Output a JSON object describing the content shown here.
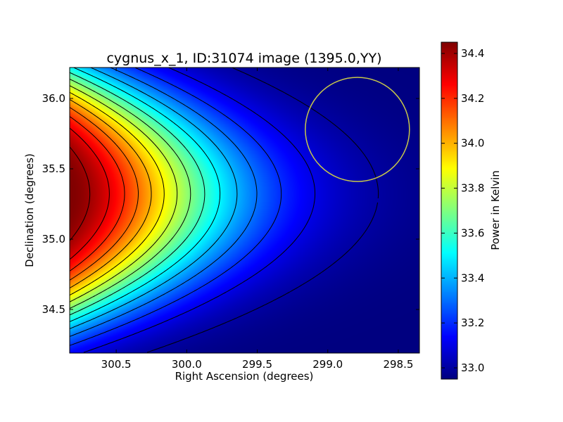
{
  "chart_data": {
    "type": "heatmap",
    "title": "cygnus_x_1, ID:31074 image (1395.0,YY)",
    "xlabel": "Right Ascension (degrees)",
    "ylabel": "Declination (degrees)",
    "colorbar_label": "Power in Kelvin",
    "colormap": "jet",
    "x_direction": "reversed",
    "xlim": [
      300.83,
      298.35
    ],
    "ylim": [
      34.19,
      36.22
    ],
    "x_ticks": [
      300.5,
      300.0,
      299.5,
      299.0,
      298.5
    ],
    "x_tick_labels": [
      "300.5",
      "300.0",
      "299.5",
      "299.0",
      "298.5"
    ],
    "y_ticks": [
      34.5,
      35.0,
      35.5,
      36.0
    ],
    "y_tick_labels": [
      "34.5",
      "35.0",
      "35.5",
      "36.0"
    ],
    "colorbar_range": [
      32.95,
      34.45
    ],
    "colorbar_ticks": [
      33.0,
      33.2,
      33.4,
      33.6,
      33.8,
      34.0,
      34.2,
      34.4
    ],
    "colorbar_tick_labels": [
      "33.0",
      "33.2",
      "33.4",
      "33.6",
      "33.8",
      "34.0",
      "34.2",
      "34.4"
    ],
    "peak": {
      "ra": 300.83,
      "dec": 35.32,
      "value": 34.45
    },
    "minimum": {
      "ra": 298.35,
      "dec": 35.45,
      "value": 32.95
    },
    "contour_levels": [
      33.0,
      33.1,
      33.2,
      33.3,
      33.4,
      33.5,
      33.6,
      33.7,
      33.8,
      33.9,
      34.0,
      34.1,
      34.2,
      34.3,
      34.4
    ],
    "contour_color": "#000000",
    "circle_marker": {
      "ra": 298.79,
      "dec": 35.78,
      "radius_deg": 0.37,
      "color": "#c8c84a"
    }
  }
}
